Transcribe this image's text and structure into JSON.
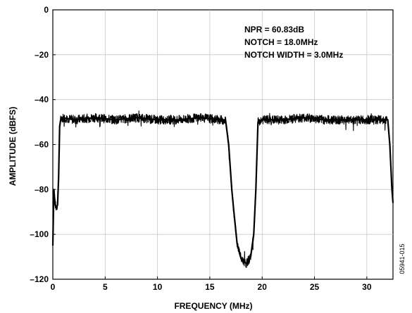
{
  "chart_data": {
    "type": "line",
    "title": "",
    "xlabel": "FREQUENCY (MHz)",
    "ylabel": "AMPLITUDE (dBFS)",
    "xlim": [
      0,
      32.5
    ],
    "ylim": [
      -120,
      0
    ],
    "xticks": [
      0,
      5,
      10,
      15,
      20,
      25,
      30
    ],
    "yticks": [
      0,
      -20,
      -40,
      -60,
      -80,
      -100,
      -120
    ],
    "xtick_labels": [
      "0",
      "5",
      "10",
      "15",
      "20",
      "25",
      "30"
    ],
    "ytick_labels": [
      "0",
      "–20",
      "–40",
      "–60",
      "–80",
      "–100",
      "–120"
    ],
    "grid": true,
    "line_color": "#000000",
    "annotations": [
      "NPR = 60.83dB",
      "NOTCH = 18.0MHz",
      "NOTCH WIDTH = 3.0MHz"
    ],
    "figure_id": "05941-015",
    "series": [
      {
        "x": [
          0.0,
          0.1,
          0.2,
          0.3,
          0.45,
          0.55,
          0.65,
          0.75,
          1.0,
          2.0,
          4.0,
          6.0,
          8.0,
          10.0,
          12.0,
          14.0,
          16.0,
          16.5,
          16.8,
          17.1,
          17.3,
          17.6,
          18.0,
          18.5,
          18.9,
          19.2,
          19.4,
          19.6,
          20.0,
          22.0,
          24.0,
          26.0,
          28.0,
          30.0,
          31.5,
          32.0,
          32.2,
          32.4,
          32.5
        ],
        "y": [
          -105,
          -80,
          -86,
          -88,
          -87,
          -75,
          -52,
          -49,
          -48,
          -49,
          -48,
          -49,
          -48,
          -49,
          -49,
          -48,
          -49,
          -49,
          -60,
          -80,
          -90,
          -104,
          -111,
          -113,
          -110,
          -100,
          -80,
          -50,
          -49,
          -49,
          -48,
          -49,
          -49,
          -49,
          -49,
          -49,
          -60,
          -80,
          -86
        ]
      }
    ]
  }
}
